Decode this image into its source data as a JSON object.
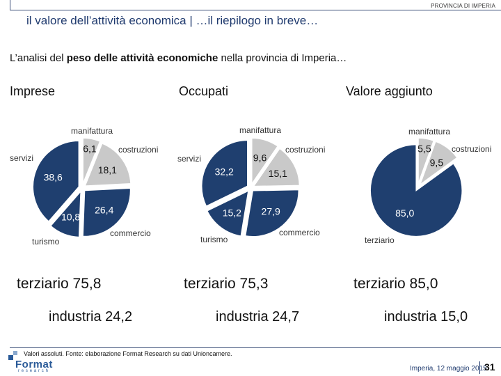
{
  "header": {
    "province": "PROVINCIA DI IMPERIA",
    "title": "il valore dell’attività economica | …il riepilogo in breve…"
  },
  "subtitle": {
    "before": "L’analisi del ",
    "bold": "peso delle attività economiche",
    "after": " nella provincia di Imperia…"
  },
  "colors": {
    "navy": "#1f3f6f",
    "grey": "#c9c9c9",
    "border": "#ffffff"
  },
  "chart_data": [
    {
      "type": "pie",
      "title": "Imprese",
      "slices": [
        {
          "name": "manifattura",
          "value": 6.1,
          "label": "6,1",
          "color": "#c9c9c9"
        },
        {
          "name": "costruzioni",
          "value": 18.1,
          "label": "18,1",
          "color": "#c9c9c9"
        },
        {
          "name": "commercio",
          "value": 26.4,
          "label": "26,4",
          "color": "#1f3f6f"
        },
        {
          "name": "turismo",
          "value": 10.8,
          "label": "10,8",
          "color": "#1f3f6f"
        },
        {
          "name": "servizi",
          "value": 38.6,
          "label": "38,6",
          "color": "#1f3f6f"
        }
      ],
      "summary": {
        "terziario": "terziario  75,8",
        "industria": "industria  24,2"
      }
    },
    {
      "type": "pie",
      "title": "Occupati",
      "slices": [
        {
          "name": "manifattura",
          "value": 9.6,
          "label": "9,6",
          "color": "#c9c9c9"
        },
        {
          "name": "costruzioni",
          "value": 15.1,
          "label": "15,1",
          "color": "#c9c9c9"
        },
        {
          "name": "commercio",
          "value": 27.9,
          "label": "27,9",
          "color": "#1f3f6f"
        },
        {
          "name": "turismo",
          "value": 15.2,
          "label": "15,2",
          "color": "#1f3f6f"
        },
        {
          "name": "servizi",
          "value": 32.2,
          "label": "32,2",
          "color": "#1f3f6f"
        }
      ],
      "summary": {
        "terziario": "terziario  75,3",
        "industria": "industria  24,7"
      }
    },
    {
      "type": "pie",
      "title": "Valore aggiunto",
      "slices": [
        {
          "name": "manifattura",
          "value": 5.5,
          "label": "5,5",
          "color": "#c9c9c9"
        },
        {
          "name": "costruzioni",
          "value": 9.5,
          "label": "9,5",
          "color": "#c9c9c9"
        },
        {
          "name": "terziario",
          "value": 85.0,
          "label": "85,0",
          "color": "#1f3f6f"
        }
      ],
      "summary": {
        "terziario": "terziario  85,0",
        "industria": "industria  15,0"
      }
    }
  ],
  "category_labels": {
    "manifattura": "manifattura",
    "costruzioni": "costruzioni",
    "servizi": "servizi",
    "turismo": "turismo",
    "commercio": "commercio",
    "terziario": "terziario"
  },
  "footer": {
    "note": "Valori assoluti. Fonte: elaborazione Format Research su dati Unioncamere.",
    "logo": "Format",
    "logo_sub": "research",
    "date": "Imperia, 12 maggio 2015",
    "page": "31"
  }
}
